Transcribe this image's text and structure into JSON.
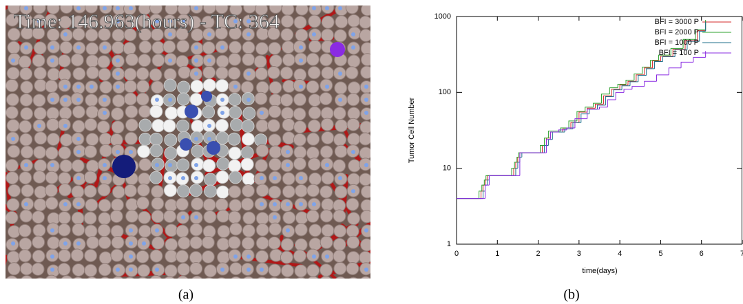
{
  "image_overlay": "Time: 146.963(hours) - TC: 364",
  "captions": [
    "(a)",
    "(b)"
  ],
  "chart_data": {
    "type": "line",
    "step": true,
    "log_y": true,
    "xlabel": "time(days)",
    "ylabel": "Tumor Cell Number",
    "xlim": [
      0,
      7
    ],
    "xticks": [
      0,
      1,
      2,
      3,
      4,
      5,
      6,
      7
    ],
    "ylim": [
      1,
      1000
    ],
    "yticks": [
      1,
      10,
      100,
      1000
    ],
    "legend": "upper right",
    "series": [
      {
        "name": "BFI = 3000 P",
        "color": "#d42a2a",
        "x": [
          0,
          0.6,
          0.65,
          0.7,
          0.75,
          1.4,
          1.45,
          1.5,
          1.55,
          2.1,
          2.2,
          2.3,
          2.6,
          2.8,
          3.0,
          3.2,
          3.4,
          3.6,
          3.8,
          4.0,
          4.2,
          4.4,
          4.6,
          4.8,
          5.0,
          5.3,
          5.6,
          5.9,
          6.1
        ],
        "values": [
          4,
          5,
          6,
          7,
          8,
          10,
          12,
          14,
          16,
          20,
          25,
          30,
          33,
          40,
          55,
          62,
          70,
          90,
          110,
          125,
          140,
          170,
          210,
          260,
          300,
          370,
          480,
          650,
          870
        ]
      },
      {
        "name": "BFI = 2000 P",
        "color": "#2ca02c",
        "x": [
          0,
          0.55,
          0.62,
          0.68,
          0.72,
          1.35,
          1.42,
          1.48,
          1.52,
          2.05,
          2.15,
          2.25,
          2.55,
          2.75,
          2.95,
          3.15,
          3.35,
          3.55,
          3.75,
          3.95,
          4.15,
          4.35,
          4.55,
          4.75,
          4.95,
          5.25,
          5.55,
          5.85,
          6.1
        ],
        "values": [
          4,
          5,
          6,
          7,
          8,
          10,
          12,
          14,
          16,
          20,
          25,
          31,
          34,
          42,
          56,
          64,
          72,
          95,
          115,
          128,
          145,
          175,
          215,
          265,
          310,
          380,
          500,
          670,
          900
        ]
      },
      {
        "name": "BFI = 1000 P",
        "color": "#1f6f8b",
        "x": [
          0,
          0.65,
          0.7,
          0.75,
          0.8,
          1.45,
          1.5,
          1.55,
          1.6,
          2.15,
          2.25,
          2.35,
          2.65,
          2.85,
          3.05,
          3.25,
          3.45,
          3.65,
          3.85,
          4.05,
          4.25,
          4.45,
          4.65,
          4.85,
          5.05,
          5.35,
          5.65,
          5.95,
          6.1
        ],
        "values": [
          4,
          5,
          6,
          7,
          8,
          10,
          12,
          14,
          16,
          20,
          24,
          30,
          33,
          40,
          52,
          60,
          68,
          88,
          108,
          122,
          138,
          168,
          205,
          255,
          295,
          365,
          470,
          640,
          850
        ]
      },
      {
        "name": "BFI = 100 P",
        "color": "#8a2be2",
        "x": [
          0,
          0.7,
          0.8,
          1.55,
          2.2,
          2.3,
          2.5,
          2.7,
          2.9,
          3.2,
          3.5,
          3.7,
          3.9,
          4.1,
          4.3,
          4.6,
          4.9,
          5.2,
          5.5,
          5.8,
          6.1
        ],
        "values": [
          4,
          6,
          8,
          16,
          24,
          30,
          32,
          34,
          45,
          60,
          64,
          80,
          100,
          110,
          120,
          140,
          170,
          210,
          250,
          290,
          350
        ]
      }
    ]
  }
}
